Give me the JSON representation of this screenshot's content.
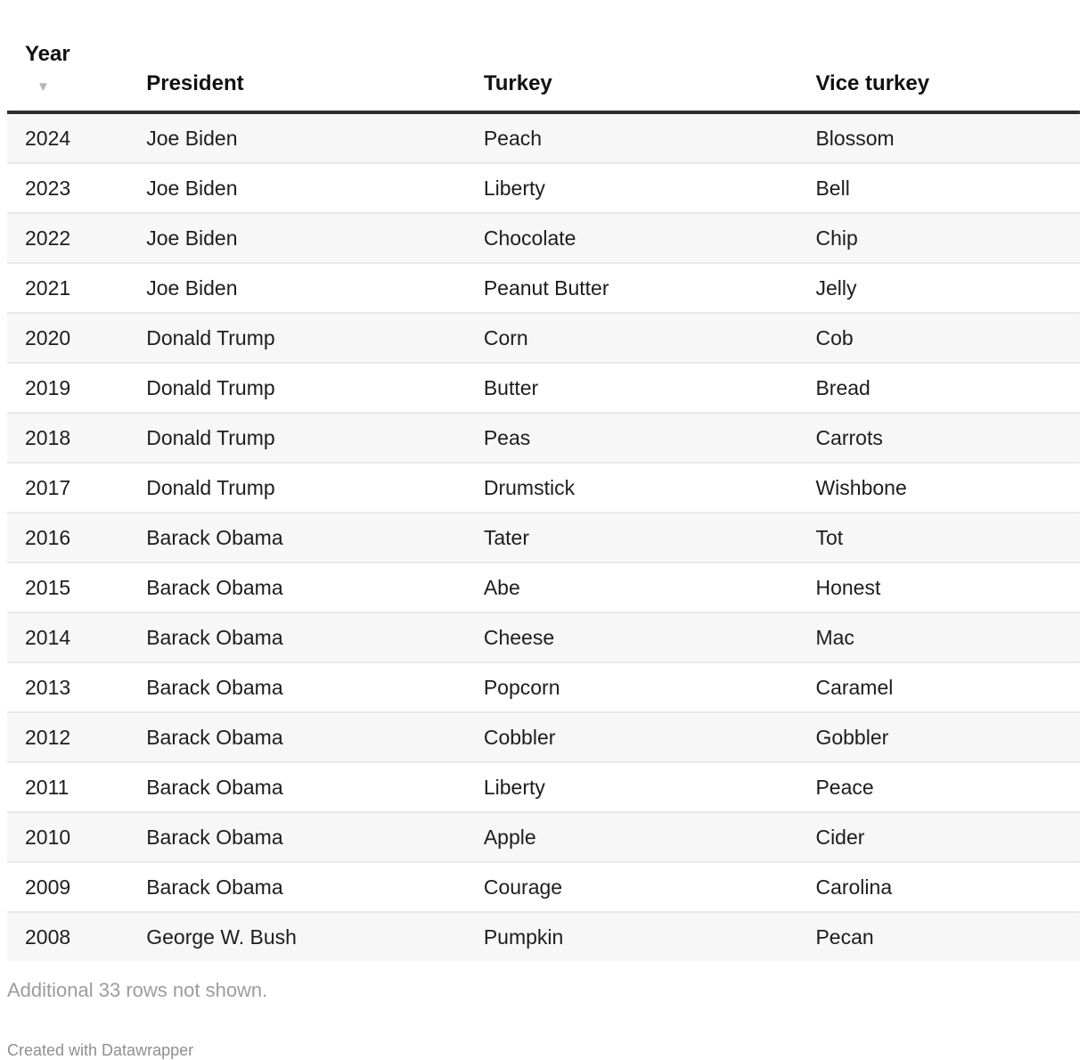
{
  "table": {
    "columns": [
      {
        "key": "year",
        "label": "Year"
      },
      {
        "key": "president",
        "label": "President"
      },
      {
        "key": "turkey",
        "label": "Turkey"
      },
      {
        "key": "vice_turkey",
        "label": "Vice turkey"
      }
    ],
    "sort": {
      "column": "year",
      "direction": "desc",
      "icon": "▼"
    },
    "rows": [
      {
        "year": "2024",
        "president": "Joe Biden",
        "turkey": "Peach",
        "vice_turkey": "Blossom"
      },
      {
        "year": "2023",
        "president": "Joe Biden",
        "turkey": "Liberty",
        "vice_turkey": "Bell"
      },
      {
        "year": "2022",
        "president": "Joe Biden",
        "turkey": "Chocolate",
        "vice_turkey": "Chip"
      },
      {
        "year": "2021",
        "president": "Joe Biden",
        "turkey": "Peanut Butter",
        "vice_turkey": "Jelly"
      },
      {
        "year": "2020",
        "president": "Donald Trump",
        "turkey": "Corn",
        "vice_turkey": "Cob"
      },
      {
        "year": "2019",
        "president": "Donald Trump",
        "turkey": "Butter",
        "vice_turkey": "Bread"
      },
      {
        "year": "2018",
        "president": "Donald Trump",
        "turkey": "Peas",
        "vice_turkey": "Carrots"
      },
      {
        "year": "2017",
        "president": "Donald Trump",
        "turkey": "Drumstick",
        "vice_turkey": "Wishbone"
      },
      {
        "year": "2016",
        "president": "Barack Obama",
        "turkey": "Tater",
        "vice_turkey": "Tot"
      },
      {
        "year": "2015",
        "president": "Barack Obama",
        "turkey": "Abe",
        "vice_turkey": "Honest"
      },
      {
        "year": "2014",
        "president": "Barack Obama",
        "turkey": "Cheese",
        "vice_turkey": "Mac"
      },
      {
        "year": "2013",
        "president": "Barack Obama",
        "turkey": "Popcorn",
        "vice_turkey": "Caramel"
      },
      {
        "year": "2012",
        "president": "Barack Obama",
        "turkey": "Cobbler",
        "vice_turkey": "Gobbler"
      },
      {
        "year": "2011",
        "president": "Barack Obama",
        "turkey": "Liberty",
        "vice_turkey": "Peace"
      },
      {
        "year": "2010",
        "president": "Barack Obama",
        "turkey": "Apple",
        "vice_turkey": "Cider"
      },
      {
        "year": "2009",
        "president": "Barack Obama",
        "turkey": "Courage",
        "vice_turkey": "Carolina"
      },
      {
        "year": "2008",
        "president": "George W. Bush",
        "turkey": "Pumpkin",
        "vice_turkey": "Pecan"
      }
    ]
  },
  "footer": {
    "note": "Additional 33 rows not shown.",
    "attribution": "Created with Datawrapper"
  },
  "colors": {
    "text": "#1d1d1d",
    "header_border": "#2e2e2e",
    "row_border": "#e9e9e9",
    "stripe": "#f7f7f7",
    "muted_text": "#9c9c9c",
    "attribution_text": "#8f8f8f",
    "sort_icon": "#b5b5b5",
    "background": "#ffffff"
  }
}
